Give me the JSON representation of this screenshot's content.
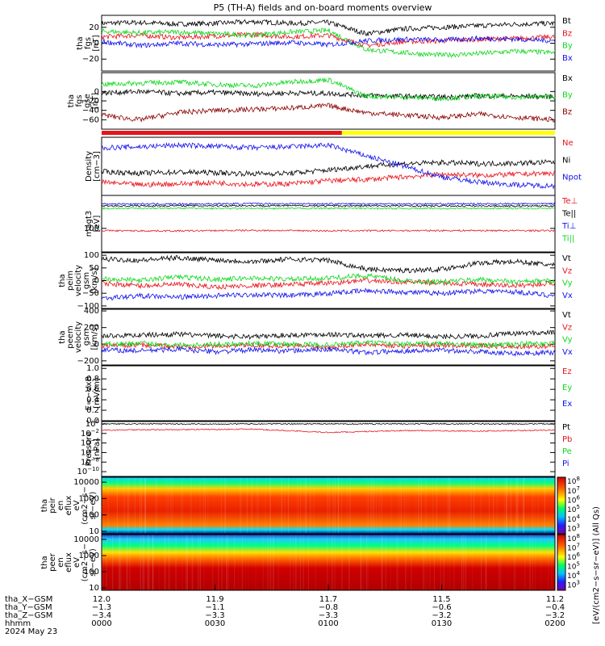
{
  "title": "P5 (TH-A) fields and on-board moments overview",
  "colors": {
    "black": "#000000",
    "red": "#e8141b",
    "green": "#0cd81c",
    "blue": "#1010ee",
    "darkred": "#8b0000",
    "yellow": "#ffff00"
  },
  "bars": [
    {
      "label": "",
      "color": "#e8141b",
      "from": 0,
      "to": 0.53
    },
    {
      "label": "",
      "color": "#ffff00",
      "from": 0.53,
      "to": 1
    }
  ],
  "chart_data": [
    {
      "type": "line",
      "panel": "tha_fgs_gsm",
      "ylabel": [
        "tha",
        "fgs",
        "[nT]"
      ],
      "yticks": [
        "20",
        "0",
        "−20"
      ],
      "legend": [
        {
          "name": "Bt",
          "color": "#000000"
        },
        {
          "name": "Bz",
          "color": "#e8141b"
        },
        {
          "name": "By",
          "color": "#0cd81c"
        },
        {
          "name": "Bx",
          "color": "#1010ee"
        }
      ],
      "series": [
        {
          "name": "Bt",
          "color": "#000000",
          "x": [
            0,
            10,
            20,
            30,
            40,
            50,
            60,
            70,
            80,
            90,
            100,
            110,
            120
          ],
          "y": [
            25,
            26,
            24,
            25,
            27,
            25,
            26,
            12,
            18,
            20,
            22,
            24,
            25
          ]
        },
        {
          "name": "Bz",
          "color": "#e8141b",
          "x": [
            0,
            10,
            20,
            30,
            40,
            50,
            60,
            70,
            80,
            90,
            100,
            110,
            120
          ],
          "y": [
            8,
            10,
            7,
            9,
            11,
            8,
            10,
            -3,
            2,
            3,
            5,
            6,
            8
          ]
        },
        {
          "name": "By",
          "color": "#0cd81c",
          "x": [
            0,
            10,
            20,
            30,
            40,
            50,
            60,
            70,
            80,
            90,
            100,
            110,
            120
          ],
          "y": [
            15,
            13,
            14,
            12,
            10,
            14,
            16,
            -8,
            -12,
            -15,
            -13,
            -10,
            -12
          ]
        },
        {
          "name": "Bx",
          "color": "#1010ee",
          "x": [
            0,
            10,
            20,
            30,
            40,
            50,
            60,
            70,
            80,
            90,
            100,
            110,
            120
          ],
          "y": [
            2,
            -3,
            0,
            -2,
            -1,
            1,
            -2,
            3,
            5,
            4,
            6,
            5,
            3
          ]
        }
      ]
    },
    {
      "type": "line",
      "panel": "tha_fgs_gse",
      "ylabel": [
        "tha",
        "fgs",
        "gse",
        "[nT]"
      ],
      "yticks": [
        "0",
        "−20",
        "−40",
        "−60"
      ],
      "legend": [
        {
          "name": "Bx",
          "color": "#000000"
        },
        {
          "name": "By",
          "color": "#0cd81c"
        },
        {
          "name": "Bz",
          "color": "#8b0000"
        }
      ],
      "series": [
        {
          "name": "Bx",
          "color": "#000000",
          "x": [
            0,
            10,
            20,
            30,
            40,
            50,
            60,
            70,
            80,
            90,
            100,
            110,
            120
          ],
          "y": [
            -3,
            0,
            -4,
            -2,
            -5,
            -3,
            -4,
            -8,
            -10,
            -12,
            -9,
            -10,
            -11
          ]
        },
        {
          "name": "By",
          "color": "#0cd81c",
          "x": [
            0,
            10,
            20,
            30,
            40,
            50,
            60,
            70,
            80,
            90,
            100,
            110,
            120
          ],
          "y": [
            15,
            18,
            20,
            15,
            12,
            20,
            25,
            -10,
            -12,
            -15,
            -10,
            -12,
            -11
          ]
        },
        {
          "name": "Bz",
          "color": "#8b0000",
          "x": [
            0,
            10,
            20,
            30,
            40,
            50,
            60,
            70,
            80,
            90,
            100,
            110,
            120
          ],
          "y": [
            -50,
            -60,
            -45,
            -40,
            -38,
            -35,
            -30,
            -45,
            -50,
            -55,
            -48,
            -55,
            -60
          ]
        }
      ]
    },
    {
      "type": "line",
      "panel": "density",
      "ylabel": [
        "Density",
        "[cm−3]"
      ],
      "legend": [
        {
          "name": "Ne",
          "color": "#e8141b"
        },
        {
          "name": "Ni",
          "color": "#000000"
        },
        {
          "name": "Npot",
          "color": "#1010ee"
        }
      ],
      "series": [
        {
          "name": "Ne",
          "color": "#e8141b",
          "x": [
            0,
            10,
            20,
            30,
            40,
            50,
            60,
            70,
            80,
            90,
            100,
            110,
            120
          ],
          "y": [
            0.25,
            0.2,
            0.22,
            0.24,
            0.21,
            0.22,
            0.28,
            0.3,
            0.35,
            0.4,
            0.38,
            0.4,
            0.42
          ]
        },
        {
          "name": "Ni",
          "color": "#000000",
          "x": [
            0,
            10,
            20,
            30,
            40,
            50,
            60,
            70,
            80,
            90,
            100,
            110,
            120
          ],
          "y": [
            0.45,
            0.42,
            0.44,
            0.43,
            0.41,
            0.42,
            0.48,
            0.55,
            0.6,
            0.62,
            0.6,
            0.61,
            0.63
          ]
        },
        {
          "name": "Npot",
          "color": "#1010ee",
          "x": [
            0,
            10,
            20,
            30,
            40,
            50,
            60,
            70,
            80,
            90,
            100,
            110,
            120
          ],
          "y": [
            0.9,
            0.92,
            0.95,
            0.93,
            0.9,
            0.92,
            0.95,
            0.75,
            0.55,
            0.35,
            0.25,
            0.2,
            0.18
          ]
        }
      ]
    },
    {
      "type": "line",
      "panel": "tha_peim_t3_magt3",
      "ylabel": [
        "magt3",
        "[eV]"
      ],
      "yticks": [
        "100"
      ],
      "legend": [
        {
          "name": "Te⊥",
          "color": "#e8141b"
        },
        {
          "name": "Te||",
          "color": "#000000"
        },
        {
          "name": "Ti⊥",
          "color": "#1010ee"
        },
        {
          "name": "Ti||",
          "color": "#0cd81c"
        }
      ],
      "series": [
        {
          "name": "Te⊥",
          "color": "#e8141b",
          "x": [
            0,
            20,
            40,
            60,
            80,
            100,
            120
          ],
          "y": [
            80,
            78,
            82,
            79,
            80,
            81,
            80
          ]
        },
        {
          "name": "Te||",
          "color": "#000000",
          "x": [
            0,
            20,
            40,
            60,
            80,
            100,
            120
          ],
          "y": [
            900,
            910,
            920,
            905,
            900,
            895,
            900
          ]
        },
        {
          "name": "Ti⊥",
          "color": "#1010ee",
          "x": [
            0,
            20,
            40,
            60,
            80,
            100,
            120
          ],
          "y": [
            1100,
            1080,
            1120,
            1100,
            1090,
            1100,
            1110
          ]
        },
        {
          "name": "Ti||",
          "color": "#0cd81c",
          "x": [
            0,
            20,
            40,
            60,
            80,
            100,
            120
          ],
          "y": [
            700,
            720,
            690,
            710,
            700,
            705,
            700
          ]
        }
      ]
    },
    {
      "type": "line",
      "panel": "tha_peim_velocity_gsm",
      "ylabel": [
        "tha",
        "peim",
        "velocity",
        "gsm",
        "[km/s]"
      ],
      "yticks": [
        "100",
        "50",
        "0",
        "−50",
        "−100"
      ],
      "legend": [
        {
          "name": "Vt",
          "color": "#000000"
        },
        {
          "name": "Vz",
          "color": "#e8141b"
        },
        {
          "name": "Vy",
          "color": "#0cd81c"
        },
        {
          "name": "Vx",
          "color": "#1010ee"
        }
      ],
      "series": [
        {
          "name": "Vt",
          "color": "#000000",
          "x": [
            0,
            10,
            20,
            30,
            40,
            50,
            60,
            70,
            80,
            90,
            100,
            110,
            120
          ],
          "y": [
            85,
            80,
            90,
            82,
            75,
            85,
            80,
            45,
            40,
            45,
            70,
            75,
            60
          ]
        },
        {
          "name": "Vz",
          "color": "#e8141b",
          "x": [
            0,
            10,
            20,
            30,
            40,
            50,
            60,
            70,
            80,
            90,
            100,
            110,
            120
          ],
          "y": [
            -10,
            -20,
            -15,
            -25,
            -20,
            -15,
            -10,
            0,
            -5,
            -10,
            -15,
            -20,
            -10
          ]
        },
        {
          "name": "Vy",
          "color": "#0cd81c",
          "x": [
            0,
            10,
            20,
            30,
            40,
            50,
            60,
            70,
            80,
            90,
            100,
            110,
            120
          ],
          "y": [
            10,
            0,
            15,
            5,
            10,
            5,
            10,
            20,
            0,
            -5,
            5,
            -5,
            0
          ]
        },
        {
          "name": "Vx",
          "color": "#1010ee",
          "x": [
            0,
            10,
            20,
            30,
            40,
            50,
            60,
            70,
            80,
            90,
            100,
            110,
            120
          ],
          "y": [
            -70,
            -60,
            -65,
            -60,
            -55,
            -60,
            -50,
            -40,
            -45,
            -50,
            -40,
            -45,
            -60
          ]
        }
      ]
    },
    {
      "type": "line",
      "panel": "tha_peem_velocity_gsm",
      "ylabel": [
        "tha",
        "peem",
        "velocity",
        "gsm",
        "[km/s]"
      ],
      "yticks": [
        "400",
        "200",
        "0",
        "−200"
      ],
      "legend": [
        {
          "name": "Vt",
          "color": "#000000"
        },
        {
          "name": "Vz",
          "color": "#e8141b"
        },
        {
          "name": "Vy",
          "color": "#0cd81c"
        },
        {
          "name": "Vx",
          "color": "#1010ee"
        }
      ],
      "series": [
        {
          "name": "Vt",
          "color": "#000000",
          "x": [
            0,
            10,
            20,
            30,
            40,
            50,
            60,
            70,
            80,
            90,
            100,
            110,
            120
          ],
          "y": [
            100,
            110,
            120,
            100,
            90,
            110,
            120,
            100,
            110,
            90,
            100,
            130,
            140
          ]
        },
        {
          "name": "Vz",
          "color": "#e8141b",
          "x": [
            0,
            10,
            20,
            30,
            40,
            50,
            60,
            70,
            80,
            90,
            100,
            110,
            120
          ],
          "y": [
            -20,
            -10,
            -30,
            -20,
            -10,
            -20,
            -30,
            0,
            -20,
            -10,
            -20,
            -30,
            -20
          ]
        },
        {
          "name": "Vy",
          "color": "#0cd81c",
          "x": [
            0,
            10,
            20,
            30,
            40,
            50,
            60,
            70,
            80,
            90,
            100,
            110,
            120
          ],
          "y": [
            0,
            10,
            -10,
            0,
            10,
            0,
            -10,
            20,
            0,
            10,
            -10,
            0,
            10
          ]
        },
        {
          "name": "Vx",
          "color": "#1010ee",
          "x": [
            0,
            10,
            20,
            30,
            40,
            50,
            60,
            70,
            80,
            90,
            100,
            110,
            120
          ],
          "y": [
            -70,
            -80,
            -60,
            -90,
            -70,
            -80,
            -60,
            -100,
            -80,
            -70,
            -90,
            -110,
            -100
          ]
        }
      ]
    },
    {
      "type": "line",
      "panel": "efield",
      "ylabel": [
        "E=−VxB",
        "[mV/m]"
      ],
      "yticks": [
        "1.0",
        "0.8",
        "0.6",
        "0.4",
        "0.2",
        "0.0"
      ],
      "legend": [
        {
          "name": "Ez",
          "color": "#e8141b"
        },
        {
          "name": "Ey",
          "color": "#0cd81c"
        },
        {
          "name": "Ex",
          "color": "#1010ee"
        }
      ],
      "series": []
    },
    {
      "type": "line",
      "panel": "pressure",
      "ylabel": [
        "Pressure",
        "[nPa]"
      ],
      "yticks": [
        "10^0",
        "10^−2",
        "10^−4",
        "10^−6",
        "10^−8",
        "10^−10"
      ],
      "legend": [
        {
          "name": "Pt",
          "color": "#000000"
        },
        {
          "name": "Pb",
          "color": "#e8141b"
        },
        {
          "name": "Pe",
          "color": "#0cd81c"
        },
        {
          "name": "Pi",
          "color": "#1010ee"
        }
      ],
      "series": [
        {
          "name": "Pt",
          "color": "#000000",
          "x": [
            0,
            20,
            40,
            60,
            80,
            100,
            120
          ],
          "y": [
            0,
            0,
            0,
            0,
            0,
            0,
            0
          ]
        },
        {
          "name": "Pb",
          "color": "#e8141b",
          "x": [
            0,
            20,
            40,
            60,
            80,
            100,
            120
          ],
          "y": [
            -1.3,
            -1.2,
            -1.1,
            -1.8,
            -1.4,
            -1.5,
            -1.3
          ]
        }
      ]
    },
    {
      "type": "heatmap",
      "panel": "tha_peir_en_eflux",
      "ylabel": [
        "tha",
        "peir",
        "en",
        "eflux",
        "eV",
        "(cm2−s−",
        "sr−eV)"
      ],
      "yticks": [
        "10000",
        "1000",
        "100",
        "10"
      ],
      "zlabel": "[eV/(cm2−s−sr−eV)] (All Qs)",
      "ztick_exps": [
        "3",
        "4",
        "5",
        "6",
        "7",
        "8"
      ]
    },
    {
      "type": "heatmap",
      "panel": "tha_peer_en_eflux",
      "ylabel": [
        "tha",
        "peer",
        "en",
        "eflux",
        "eV",
        "(cm2−s−",
        "sr−eV)"
      ],
      "yticks": [
        "10000",
        "1000",
        "100",
        "10"
      ],
      "zlabel": "[eV/(cm2−s−sr−eV)] (All Qs)",
      "ztick_exps": [
        "3",
        "4",
        "5",
        "6",
        "7",
        "8"
      ]
    }
  ],
  "xaxis": {
    "rowlabels": [
      "tha_X−GSM",
      "tha_Y−GSM",
      "tha_Z−GSM",
      "hhmm",
      "2024 May 23"
    ],
    "ticks": [
      {
        "x": 0,
        "rows": [
          "12.0",
          "−1.3",
          "−3.4",
          "0000"
        ]
      },
      {
        "x": 30,
        "rows": [
          "11.9",
          "−1.1",
          "−3.3",
          "0030"
        ]
      },
      {
        "x": 60,
        "rows": [
          "11.7",
          "−0.8",
          "−3.3",
          "0100"
        ]
      },
      {
        "x": 90,
        "rows": [
          "11.5",
          "−0.6",
          "−3.2",
          "0130"
        ]
      },
      {
        "x": 120,
        "rows": [
          "11.2",
          "−0.4",
          "−3.2",
          "0200"
        ]
      }
    ],
    "xmin": 0,
    "xmax": 120
  }
}
